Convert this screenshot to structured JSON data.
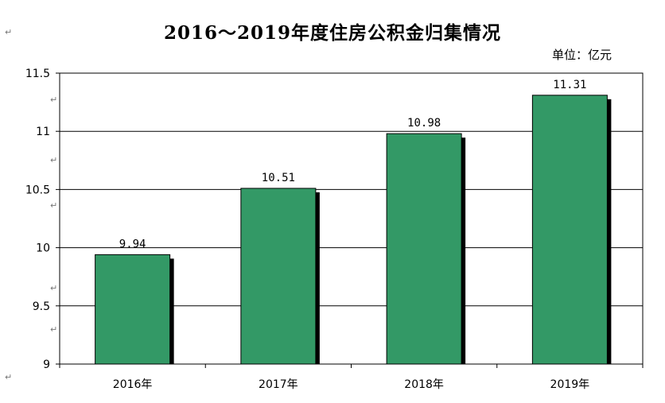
{
  "chart_data": {
    "type": "bar",
    "title": "2016～2019年度住房公积金归集情况",
    "unit": "单位：亿元",
    "categories": [
      "2016年",
      "2017年",
      "2018年",
      "2019年"
    ],
    "values": [
      9.94,
      10.51,
      10.98,
      11.31
    ],
    "value_labels": [
      "9.94",
      "10.51",
      "10.98",
      "11.31"
    ],
    "yticks": [
      9,
      9.5,
      10,
      10.5,
      11,
      11.5
    ],
    "ytick_labels": [
      "9",
      "9.5",
      "10",
      "10.5",
      "11",
      "11.5"
    ],
    "ylim": [
      9,
      11.5
    ],
    "xlabel": "",
    "ylabel": "",
    "grid": true,
    "legend": "none",
    "bar_color": "#339966",
    "shadow_color": "#000000"
  },
  "paragraph_mark": "↵"
}
